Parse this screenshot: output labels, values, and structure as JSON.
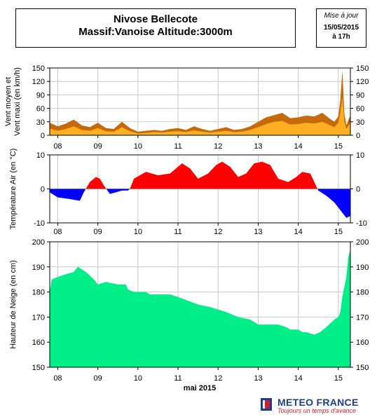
{
  "header": {
    "title_line1": "Nivose Bellecote",
    "title_line2": "Massif:Vanoise Altitude:3000m",
    "update_label": "Mise à jour",
    "update_date": "15/05/2015",
    "update_time": "à 17h"
  },
  "footer": {
    "month_label": "mai 2015",
    "logo_name": "METEO FRANCE",
    "logo_tagline": "Toujours un temps d'avance"
  },
  "colors": {
    "wind_max": "#c46a0c",
    "wind_mean": "#ffae1f",
    "temp_positive": "#ff0000",
    "temp_negative": "#0000ff",
    "snow": "#00ee88",
    "grid": "#c8c8c8"
  },
  "chart_data": [
    {
      "id": "wind",
      "type": "area",
      "ylabel": "Vent moyen et\nVent maxi (en km/h)",
      "ylim": [
        0,
        150
      ],
      "yticks": [
        0,
        30,
        60,
        90,
        120,
        150
      ],
      "xticks": [
        "08",
        "09",
        "10",
        "11",
        "12",
        "13",
        "14",
        "15"
      ],
      "grid": true,
      "x_unit": "day of May 2015",
      "series": [
        {
          "key": "max",
          "x": [
            7.8,
            8.0,
            8.2,
            8.4,
            8.6,
            8.8,
            9.0,
            9.2,
            9.4,
            9.6,
            9.8,
            10.0,
            10.2,
            10.4,
            10.6,
            10.8,
            11.0,
            11.2,
            11.4,
            11.6,
            11.8,
            12.0,
            12.2,
            12.4,
            12.6,
            12.8,
            13.0,
            13.2,
            13.4,
            13.6,
            13.8,
            14.0,
            14.2,
            14.4,
            14.6,
            14.8,
            14.9,
            15.0,
            15.05,
            15.1,
            15.15,
            15.2,
            15.3
          ],
          "y": [
            28,
            20,
            26,
            35,
            22,
            18,
            28,
            16,
            14,
            30,
            16,
            8,
            10,
            12,
            10,
            14,
            16,
            12,
            20,
            14,
            10,
            14,
            18,
            12,
            14,
            20,
            30,
            40,
            45,
            50,
            38,
            40,
            44,
            42,
            50,
            36,
            30,
            42,
            80,
            145,
            48,
            22,
            45
          ]
        },
        {
          "key": "mean",
          "x": [
            7.8,
            8.0,
            8.2,
            8.4,
            8.6,
            8.8,
            9.0,
            9.2,
            9.4,
            9.6,
            9.8,
            10.0,
            10.2,
            10.4,
            10.6,
            10.8,
            11.0,
            11.2,
            11.4,
            11.6,
            11.8,
            12.0,
            12.2,
            12.4,
            12.6,
            12.8,
            13.0,
            13.2,
            13.4,
            13.6,
            13.8,
            14.0,
            14.2,
            14.4,
            14.6,
            14.8,
            14.9,
            15.0,
            15.05,
            15.1,
            15.15,
            15.2,
            15.3
          ],
          "y": [
            15,
            10,
            14,
            20,
            12,
            10,
            16,
            9,
            8,
            18,
            9,
            4,
            5,
            7,
            6,
            8,
            9,
            7,
            11,
            8,
            6,
            8,
            10,
            7,
            8,
            12,
            18,
            25,
            30,
            32,
            24,
            25,
            28,
            26,
            30,
            22,
            18,
            28,
            50,
            85,
            30,
            14,
            28
          ]
        }
      ]
    },
    {
      "id": "temperature",
      "type": "area",
      "ylabel": "Température Air (en °C)",
      "ylim": [
        -10,
        10
      ],
      "yticks": [
        -10,
        0,
        10
      ],
      "xticks": [
        "08",
        "09",
        "10",
        "11",
        "12",
        "13",
        "14",
        "15"
      ],
      "grid": true,
      "x_unit": "day of May 2015",
      "series": [
        {
          "key": "temperature",
          "x": [
            7.8,
            8.0,
            8.3,
            8.55,
            8.65,
            8.8,
            8.95,
            9.05,
            9.15,
            9.3,
            9.45,
            9.6,
            9.75,
            9.8,
            9.9,
            10.2,
            10.5,
            10.8,
            10.95,
            11.1,
            11.3,
            11.5,
            11.75,
            11.95,
            12.1,
            12.3,
            12.5,
            12.7,
            12.9,
            13.1,
            13.3,
            13.5,
            13.75,
            13.95,
            14.1,
            14.3,
            14.4,
            14.5,
            14.7,
            14.9,
            15.1,
            15.2,
            15.3
          ],
          "y": [
            -1,
            -2.5,
            -3,
            -3.5,
            -1,
            2,
            3.5,
            3,
            1,
            -1.5,
            -1,
            -0.5,
            -0.5,
            0,
            3,
            5,
            4,
            4.5,
            6,
            7.5,
            6,
            3,
            4.5,
            7,
            8,
            6.5,
            3.5,
            4.5,
            7.5,
            8,
            7,
            3,
            2,
            3.5,
            5,
            4.5,
            2,
            -0.5,
            -2,
            -4,
            -7,
            -8.5,
            -8
          ]
        }
      ]
    },
    {
      "id": "snow",
      "type": "area",
      "ylabel": "Hauteur de Neige (en cm)",
      "ylim": [
        150,
        200
      ],
      "yticks": [
        150,
        160,
        170,
        180,
        190,
        200
      ],
      "xticks": [
        "08",
        "09",
        "10",
        "11",
        "12",
        "13",
        "14",
        "15"
      ],
      "xlabel": "mai 2015",
      "grid": true,
      "x_unit": "day of May 2015",
      "series": [
        {
          "key": "snow_depth",
          "x": [
            7.8,
            7.85,
            8.0,
            8.2,
            8.4,
            8.5,
            8.7,
            8.9,
            9.0,
            9.2,
            9.5,
            9.7,
            9.75,
            9.9,
            10.2,
            10.3,
            10.8,
            11.0,
            11.5,
            11.8,
            12.0,
            12.2,
            12.5,
            12.8,
            12.9,
            13.0,
            13.5,
            13.7,
            13.8,
            14.0,
            14.1,
            14.2,
            14.4,
            14.55,
            14.7,
            14.9,
            15.0,
            15.05,
            15.1,
            15.2,
            15.25,
            15.3
          ],
          "y": [
            180,
            185,
            186,
            187,
            188,
            190,
            188,
            185,
            183,
            184,
            183,
            183,
            181,
            180,
            180,
            179,
            179,
            178,
            175,
            174,
            173,
            172,
            170,
            169,
            168,
            167,
            167,
            166,
            165,
            165,
            164,
            164,
            163,
            164,
            166,
            169,
            170,
            172,
            178,
            186,
            194,
            197
          ]
        }
      ]
    }
  ]
}
